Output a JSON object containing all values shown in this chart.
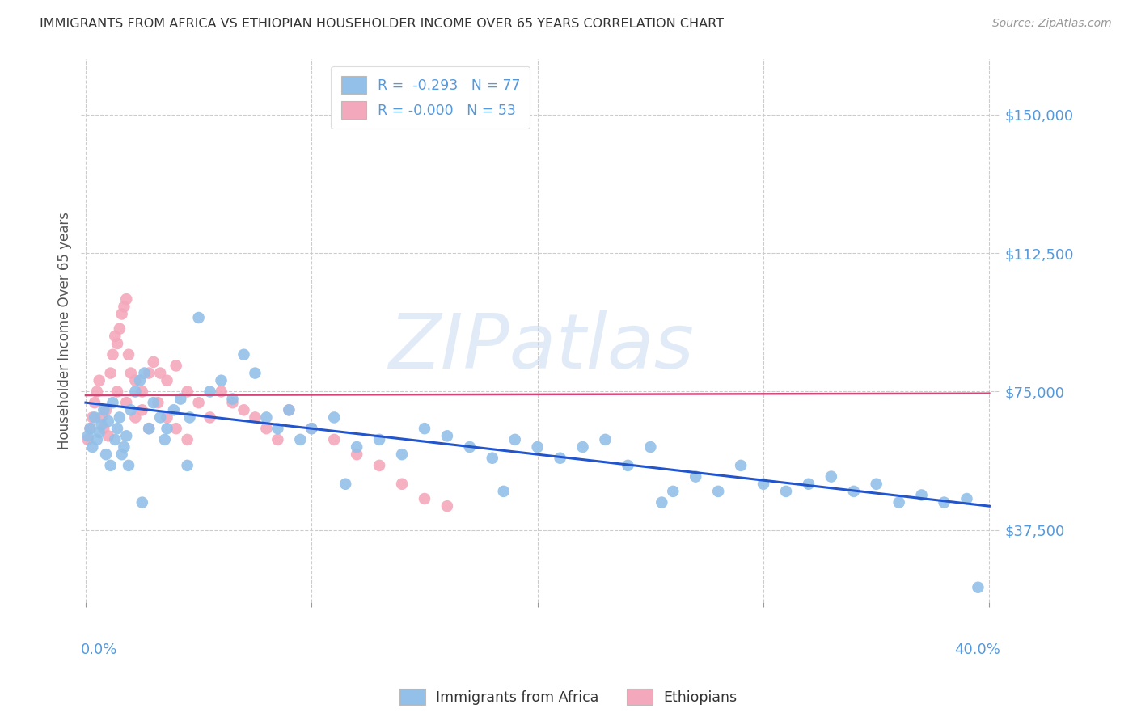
{
  "title": "IMMIGRANTS FROM AFRICA VS ETHIOPIAN HOUSEHOLDER INCOME OVER 65 YEARS CORRELATION CHART",
  "source": "Source: ZipAtlas.com",
  "ylabel": "Householder Income Over 65 years",
  "ytick_labels": [
    "$37,500",
    "$75,000",
    "$112,500",
    "$150,000"
  ],
  "ytick_values": [
    37500,
    75000,
    112500,
    150000
  ],
  "ylim": [
    18000,
    165000
  ],
  "xlim": [
    -0.002,
    0.405
  ],
  "legend_r1": "R =  -0.293   N = 77",
  "legend_r2": "R = -0.000   N = 53",
  "color_blue": "#92c0e8",
  "color_pink": "#f4a8bc",
  "trendline_blue": "#2255cc",
  "trendline_pink": "#d44477",
  "background": "#ffffff",
  "grid_color": "#cccccc",
  "title_color": "#333333",
  "axis_label_color": "#5599dd",
  "watermark": "ZIPatlas",
  "blue_points_x": [
    0.001,
    0.002,
    0.003,
    0.004,
    0.005,
    0.006,
    0.007,
    0.008,
    0.009,
    0.01,
    0.011,
    0.012,
    0.013,
    0.014,
    0.015,
    0.016,
    0.017,
    0.018,
    0.019,
    0.02,
    0.022,
    0.024,
    0.026,
    0.028,
    0.03,
    0.033,
    0.036,
    0.039,
    0.042,
    0.046,
    0.05,
    0.055,
    0.06,
    0.065,
    0.07,
    0.075,
    0.08,
    0.085,
    0.09,
    0.095,
    0.1,
    0.11,
    0.12,
    0.13,
    0.14,
    0.15,
    0.16,
    0.17,
    0.18,
    0.19,
    0.2,
    0.21,
    0.22,
    0.23,
    0.24,
    0.25,
    0.26,
    0.27,
    0.28,
    0.29,
    0.3,
    0.31,
    0.32,
    0.33,
    0.34,
    0.35,
    0.36,
    0.37,
    0.38,
    0.39,
    0.025,
    0.035,
    0.045,
    0.115,
    0.185,
    0.255,
    0.395
  ],
  "blue_points_y": [
    63000,
    65000,
    60000,
    68000,
    62000,
    64000,
    66000,
    70000,
    58000,
    67000,
    55000,
    72000,
    62000,
    65000,
    68000,
    58000,
    60000,
    63000,
    55000,
    70000,
    75000,
    78000,
    80000,
    65000,
    72000,
    68000,
    65000,
    70000,
    73000,
    68000,
    95000,
    75000,
    78000,
    73000,
    85000,
    80000,
    68000,
    65000,
    70000,
    62000,
    65000,
    68000,
    60000,
    62000,
    58000,
    65000,
    63000,
    60000,
    57000,
    62000,
    60000,
    57000,
    60000,
    62000,
    55000,
    60000,
    48000,
    52000,
    48000,
    55000,
    50000,
    48000,
    50000,
    52000,
    48000,
    50000,
    45000,
    47000,
    45000,
    46000,
    45000,
    62000,
    55000,
    50000,
    48000,
    45000,
    22000
  ],
  "pink_points_x": [
    0.001,
    0.002,
    0.003,
    0.004,
    0.005,
    0.006,
    0.007,
    0.008,
    0.009,
    0.01,
    0.011,
    0.012,
    0.013,
    0.014,
    0.015,
    0.016,
    0.017,
    0.018,
    0.019,
    0.02,
    0.022,
    0.025,
    0.028,
    0.03,
    0.033,
    0.036,
    0.04,
    0.045,
    0.05,
    0.055,
    0.06,
    0.065,
    0.07,
    0.075,
    0.08,
    0.085,
    0.09,
    0.1,
    0.11,
    0.12,
    0.13,
    0.14,
    0.15,
    0.16,
    0.014,
    0.018,
    0.022,
    0.025,
    0.028,
    0.032,
    0.036,
    0.04,
    0.045
  ],
  "pink_points_y": [
    62000,
    65000,
    68000,
    72000,
    75000,
    78000,
    68000,
    65000,
    70000,
    63000,
    80000,
    85000,
    90000,
    88000,
    92000,
    96000,
    98000,
    100000,
    85000,
    80000,
    78000,
    75000,
    80000,
    83000,
    80000,
    78000,
    82000,
    75000,
    72000,
    68000,
    75000,
    72000,
    70000,
    68000,
    65000,
    62000,
    70000,
    65000,
    62000,
    58000,
    55000,
    50000,
    46000,
    44000,
    75000,
    72000,
    68000,
    70000,
    65000,
    72000,
    68000,
    65000,
    62000
  ],
  "blue_trend_x": [
    0.0,
    0.4
  ],
  "blue_trend_y": [
    72000,
    44000
  ],
  "pink_trend_x": [
    0.0,
    0.4
  ],
  "pink_trend_y": [
    74000,
    74500
  ]
}
